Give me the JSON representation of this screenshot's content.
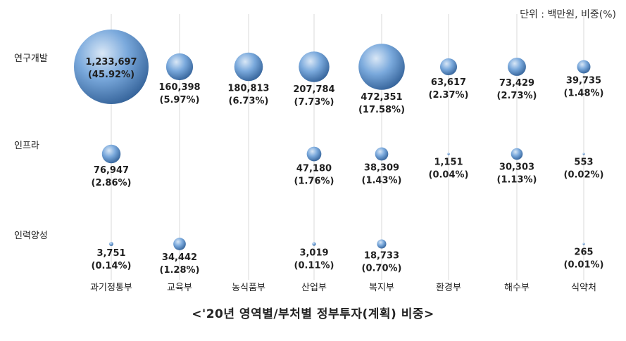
{
  "unit_note": "단위 : 백만원, 비중(%)",
  "caption": "<'20년 영역별/부처별 정부투자(계획) 비중>",
  "chart_data": {
    "type": "bubble",
    "title": "<'20년 영역별/부처별 정부투자(계획) 비중>",
    "unit": "단위 : 백만원, 비중(%)",
    "rows": [
      "연구개발",
      "인프라",
      "인력양성"
    ],
    "columns": [
      "과기정통부",
      "교육부",
      "농식품부",
      "산업부",
      "복지부",
      "환경부",
      "해수부",
      "식약처"
    ],
    "grid": "vertical",
    "colors": {
      "bubble_light": "#d9e7f6",
      "bubble_mid": "#7aa9dc",
      "bubble_dark": "#2f5d94",
      "gridline": "#d9d9d9"
    },
    "cells": [
      {
        "row": "연구개발",
        "column": "과기정통부",
        "value": 1233697,
        "label": "1,233,697",
        "share": "(45.92%)"
      },
      {
        "row": "연구개발",
        "column": "교육부",
        "value": 160398,
        "label": "160,398",
        "share": "(5.97%)"
      },
      {
        "row": "연구개발",
        "column": "농식품부",
        "value": 180813,
        "label": "180,813",
        "share": "(6.73%)"
      },
      {
        "row": "연구개발",
        "column": "산업부",
        "value": 207784,
        "label": "207,784",
        "share": "(7.73%)"
      },
      {
        "row": "연구개발",
        "column": "복지부",
        "value": 472351,
        "label": "472,351",
        "share": "(17.58%)"
      },
      {
        "row": "연구개발",
        "column": "환경부",
        "value": 63617,
        "label": "63,617",
        "share": "(2.37%)"
      },
      {
        "row": "연구개발",
        "column": "해수부",
        "value": 73429,
        "label": "73,429",
        "share": "(2.73%)"
      },
      {
        "row": "연구개발",
        "column": "식약처",
        "value": 39735,
        "label": "39,735",
        "share": "(1.48%)"
      },
      {
        "row": "인프라",
        "column": "과기정통부",
        "value": 76947,
        "label": "76,947",
        "share": "(2.86%)"
      },
      {
        "row": "인프라",
        "column": "산업부",
        "value": 47180,
        "label": "47,180",
        "share": "(1.76%)"
      },
      {
        "row": "인프라",
        "column": "복지부",
        "value": 38309,
        "label": "38,309",
        "share": "(1.43%)"
      },
      {
        "row": "인프라",
        "column": "환경부",
        "value": 1151,
        "label": "1,151",
        "share": "(0.04%)"
      },
      {
        "row": "인프라",
        "column": "해수부",
        "value": 30303,
        "label": "30,303",
        "share": "(1.13%)"
      },
      {
        "row": "인프라",
        "column": "식약처",
        "value": 553,
        "label": "553",
        "share": "(0.02%)"
      },
      {
        "row": "인력양성",
        "column": "과기정통부",
        "value": 3751,
        "label": "3,751",
        "share": "(0.14%)"
      },
      {
        "row": "인력양성",
        "column": "교육부",
        "value": 34442,
        "label": "34,442",
        "share": "(1.28%)"
      },
      {
        "row": "인력양성",
        "column": "산업부",
        "value": 3019,
        "label": "3,019",
        "share": "(0.11%)"
      },
      {
        "row": "인력양성",
        "column": "복지부",
        "value": 18733,
        "label": "18,733",
        "share": "(0.70%)"
      },
      {
        "row": "인력양성",
        "column": "식약처",
        "value": 265,
        "label": "265",
        "share": "(0.01%)"
      }
    ]
  }
}
